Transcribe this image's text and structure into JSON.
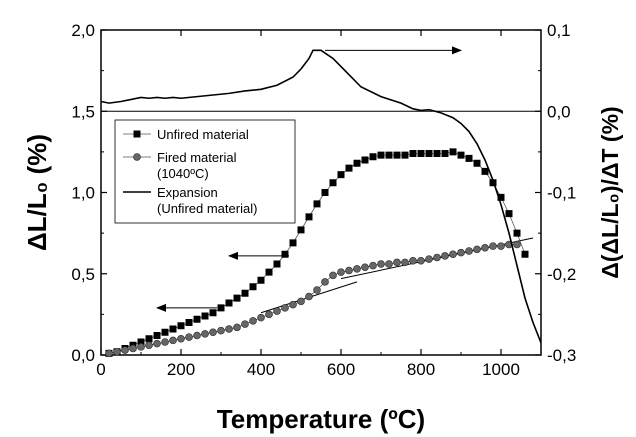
{
  "chart_data": {
    "type": "scatter",
    "xlabel": "Temperature (ºC)",
    "ylabel_left": "ΔL/L₀ (%)",
    "ylabel_right": "Δ(ΔL/L₀)/ΔT (%)",
    "xlim": [
      0,
      1100
    ],
    "ylim_left": [
      0,
      2
    ],
    "ylim_right": [
      -0.3,
      0.1
    ],
    "x_ticks": [
      "0",
      "200",
      "400",
      "600",
      "800",
      "1000"
    ],
    "y_left_ticks": [
      "0,0",
      "0,5",
      "1,0",
      "1,5",
      "2,0"
    ],
    "y_right_ticks": [
      "-0,3",
      "-0,2",
      "-0,1",
      "0,0",
      "0,1"
    ],
    "grid": false,
    "legend_position": "upper-left",
    "series": [
      {
        "name": "Unfired material",
        "axis": "left",
        "marker": "square",
        "x": [
          20,
          40,
          60,
          80,
          100,
          120,
          140,
          160,
          180,
          200,
          220,
          240,
          260,
          280,
          300,
          320,
          340,
          360,
          380,
          400,
          420,
          440,
          460,
          480,
          500,
          520,
          540,
          560,
          580,
          600,
          620,
          640,
          660,
          680,
          700,
          720,
          740,
          760,
          780,
          800,
          820,
          840,
          860,
          880,
          900,
          920,
          940,
          960,
          980,
          1000,
          1020,
          1040,
          1060
        ],
        "y": [
          0.01,
          0.02,
          0.04,
          0.06,
          0.08,
          0.1,
          0.12,
          0.14,
          0.16,
          0.18,
          0.2,
          0.22,
          0.24,
          0.26,
          0.29,
          0.32,
          0.35,
          0.38,
          0.42,
          0.46,
          0.51,
          0.56,
          0.62,
          0.69,
          0.77,
          0.85,
          0.93,
          1.0,
          1.06,
          1.11,
          1.15,
          1.18,
          1.2,
          1.22,
          1.23,
          1.23,
          1.23,
          1.23,
          1.24,
          1.24,
          1.24,
          1.24,
          1.24,
          1.25,
          1.23,
          1.21,
          1.18,
          1.13,
          1.06,
          0.97,
          0.87,
          0.75,
          0.62
        ]
      },
      {
        "name": "Fired material\n(1040ºC)",
        "axis": "left",
        "marker": "circle",
        "x": [
          20,
          40,
          60,
          80,
          100,
          120,
          140,
          160,
          180,
          200,
          220,
          240,
          260,
          280,
          300,
          320,
          340,
          360,
          380,
          400,
          420,
          440,
          460,
          480,
          500,
          520,
          540,
          560,
          580,
          600,
          620,
          640,
          660,
          680,
          700,
          720,
          740,
          760,
          780,
          800,
          820,
          840,
          860,
          880,
          900,
          920,
          940,
          960,
          980,
          1000,
          1020,
          1040
        ],
        "y": [
          0.01,
          0.02,
          0.03,
          0.04,
          0.05,
          0.06,
          0.07,
          0.08,
          0.09,
          0.1,
          0.11,
          0.12,
          0.13,
          0.14,
          0.15,
          0.16,
          0.17,
          0.19,
          0.21,
          0.23,
          0.25,
          0.27,
          0.29,
          0.31,
          0.33,
          0.36,
          0.4,
          0.45,
          0.49,
          0.51,
          0.52,
          0.53,
          0.54,
          0.55,
          0.56,
          0.56,
          0.57,
          0.57,
          0.58,
          0.58,
          0.59,
          0.6,
          0.61,
          0.62,
          0.63,
          0.64,
          0.65,
          0.66,
          0.67,
          0.67,
          0.68,
          0.68
        ]
      },
      {
        "name": "Expansion\n (Unfired material)",
        "axis": "right",
        "marker": "line",
        "x": [
          0,
          20,
          50,
          80,
          100,
          120,
          140,
          160,
          180,
          200,
          240,
          280,
          320,
          360,
          400,
          440,
          480,
          500,
          520,
          530,
          550,
          580,
          600,
          620,
          650,
          700,
          750,
          780,
          800,
          820,
          850,
          880,
          900,
          920,
          940,
          960,
          980,
          1000,
          1020,
          1040,
          1060,
          1080,
          1100
        ],
        "y": [
          0.012,
          0.01,
          0.012,
          0.015,
          0.017,
          0.016,
          0.017,
          0.016,
          0.017,
          0.016,
          0.018,
          0.02,
          0.022,
          0.025,
          0.027,
          0.032,
          0.042,
          0.052,
          0.065,
          0.075,
          0.075,
          0.065,
          0.055,
          0.045,
          0.03,
          0.018,
          0.01,
          0.003,
          0.001,
          0.002,
          -0.002,
          -0.008,
          -0.015,
          -0.025,
          -0.04,
          -0.06,
          -0.085,
          -0.115,
          -0.15,
          -0.19,
          -0.23,
          -0.26,
          -0.285
        ]
      }
    ],
    "annotations": [
      {
        "type": "arrow",
        "direction": "right",
        "axis": "right",
        "x_from": 560,
        "x_to": 900,
        "y": 0.075
      },
      {
        "type": "arrow",
        "direction": "left",
        "axis": "left",
        "x_from": 470,
        "x_to": 320,
        "y": 0.61
      },
      {
        "type": "arrow",
        "direction": "left",
        "axis": "left",
        "x_from": 290,
        "x_to": 140,
        "y": 0.29
      },
      {
        "type": "line",
        "axis": "left",
        "x_from": 400,
        "x_to": 640,
        "y_from": 0.26,
        "y_to": 0.45
      },
      {
        "type": "line",
        "axis": "left",
        "x_from": 600,
        "x_to": 1080,
        "y_from": 0.47,
        "y_to": 0.72
      },
      {
        "type": "line",
        "axis": "right",
        "x_from": 0,
        "x_to": 1100,
        "y_from": 0.0,
        "y_to": 0.0
      }
    ]
  }
}
